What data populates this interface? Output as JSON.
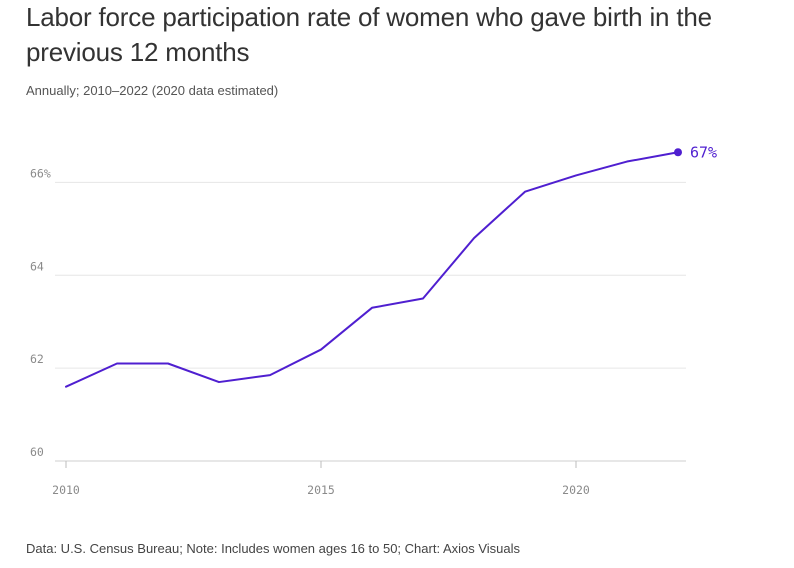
{
  "title": "Labor force participation rate of women who gave birth in the previous 12 months",
  "subtitle": "Annually; 2010–2022 (2020 data estimated)",
  "footer": "Data: U.S. Census Bureau; Note: Includes women ages 16 to 50; Chart: Axios Visuals",
  "colors": {
    "line": "#4f1fd0",
    "grid": "#e6e6e6",
    "tick_text": "#8a8a8a"
  },
  "chart_data": {
    "type": "line",
    "title": "Labor force participation rate of women who gave birth in the previous 12 months",
    "subtitle": "Annually; 2010–2022 (2020 data estimated)",
    "xlabel": "",
    "ylabel": "",
    "x": [
      2010,
      2011,
      2012,
      2013,
      2014,
      2015,
      2016,
      2017,
      2018,
      2019,
      2020,
      2021,
      2022
    ],
    "series": [
      {
        "values": [
          61.6,
          62.1,
          62.1,
          61.7,
          61.85,
          62.4,
          63.3,
          63.5,
          64.8,
          65.8,
          66.15,
          66.45,
          66.65
        ]
      }
    ],
    "xlim": [
      2010,
      2022
    ],
    "ylim": [
      60,
      67
    ],
    "x_ticks": [
      2010,
      2015,
      2020
    ],
    "x_tick_labels": [
      "2010",
      "2015",
      "2020"
    ],
    "y_ticks": [
      60,
      62,
      64,
      66
    ],
    "y_tick_labels": [
      "60",
      "62",
      "64",
      "66%"
    ],
    "end_label": "67%",
    "grid": true,
    "legend": "none"
  }
}
